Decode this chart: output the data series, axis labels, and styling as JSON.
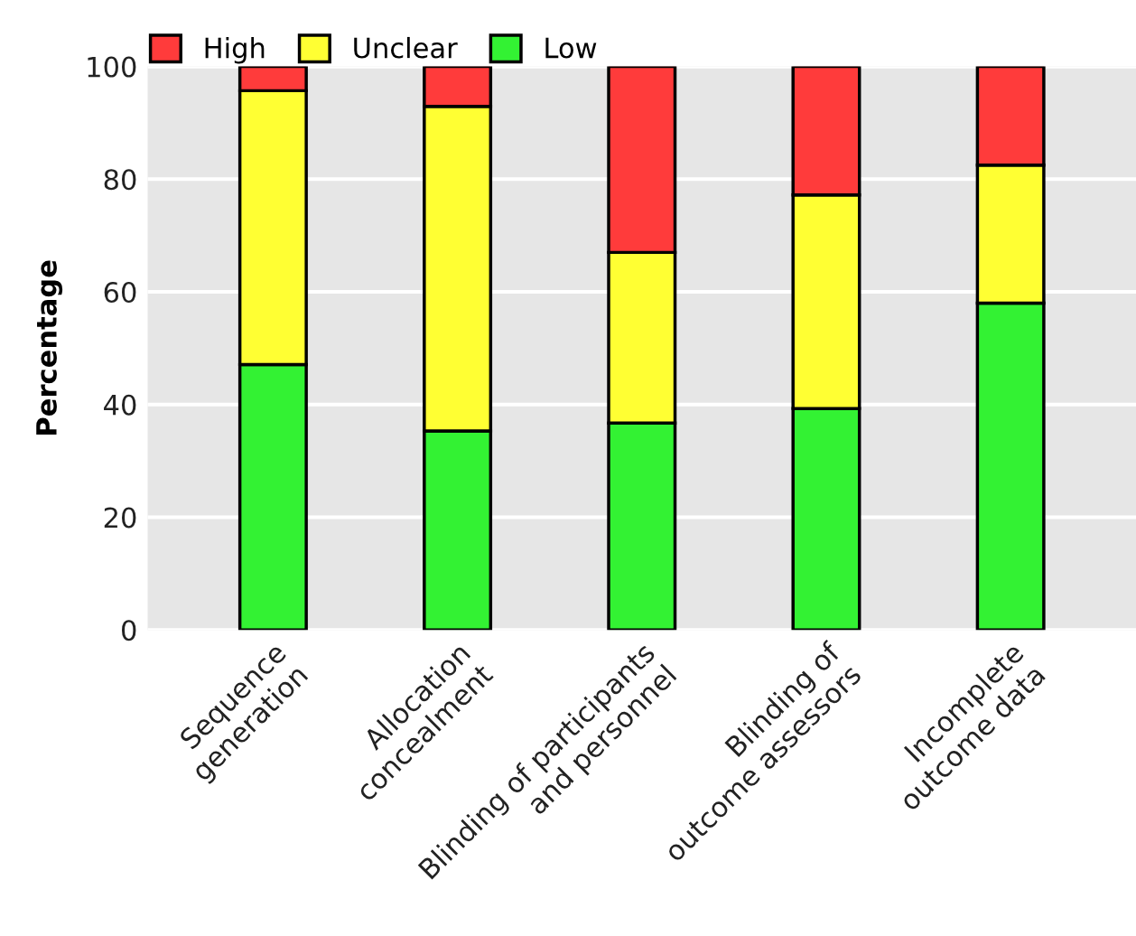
{
  "chart_data": {
    "type": "bar",
    "stacked": true,
    "ylabel": "Percentage",
    "categories": [
      "Sequence\ngeneration",
      "Allocation\nconcealment",
      "Blinding of participants\nand personnel",
      "Blinding of\noutcome assessors",
      "Incomplete\noutcome data"
    ],
    "series": [
      {
        "name": "Low",
        "color": "#33f233",
        "values": [
          47.1,
          35.3,
          36.7,
          39.3,
          58.0
        ]
      },
      {
        "name": "Unclear",
        "color": "#ffff33",
        "values": [
          48.6,
          57.6,
          30.3,
          37.9,
          24.5
        ]
      },
      {
        "name": "High",
        "color": "#ff3b3b",
        "values": [
          4.3,
          7.1,
          33.0,
          22.8,
          17.5
        ]
      }
    ],
    "ylim": [
      0,
      100
    ],
    "yticks": [
      0,
      20,
      40,
      60,
      80,
      100
    ],
    "grid": "y",
    "legend": "top left"
  }
}
